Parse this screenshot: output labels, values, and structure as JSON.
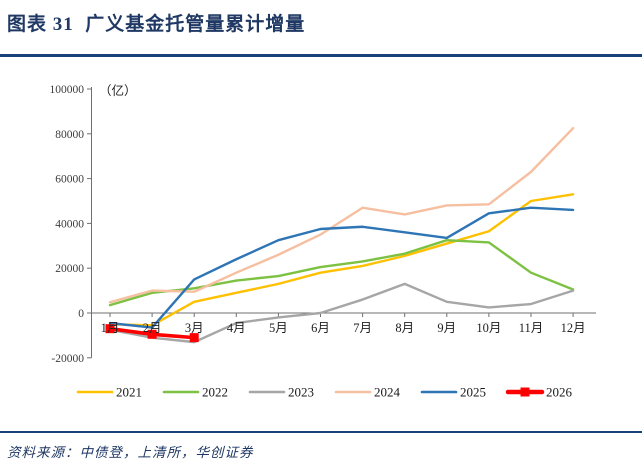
{
  "header": {
    "title": "图表 31  广义基金托管量累计增量"
  },
  "footer": {
    "source": "资料来源：中债登，上清所，华创证券"
  },
  "colors": {
    "accent_navy": "#1F3864",
    "rule_blue": "#17427A"
  },
  "chart_data": {
    "type": "line",
    "title": "广义基金托管量累计增量",
    "unit_label": "（亿）",
    "xlabel": "",
    "ylabel": "",
    "grid": false,
    "legend_position": "bottom",
    "ylim": [
      -20000,
      100000
    ],
    "ytick_step": 20000,
    "x_categories": [
      "1月",
      "2月",
      "3月",
      "4月",
      "5月",
      "6月",
      "7月",
      "8月",
      "9月",
      "10月",
      "11月",
      "12月"
    ],
    "series": [
      {
        "name": "2021",
        "color": "#FFC000",
        "values": [
          -5000,
          -5500,
          5000,
          9000,
          13000,
          18000,
          21000,
          25500,
          31000,
          36500,
          50000,
          53000
        ]
      },
      {
        "name": "2022",
        "color": "#7DC142",
        "values": [
          3500,
          9000,
          11000,
          14500,
          16500,
          20500,
          23000,
          26500,
          32500,
          31500,
          18000,
          10500
        ]
      },
      {
        "name": "2023",
        "color": "#A6A6A6",
        "values": [
          -7500,
          -11000,
          -13000,
          -4500,
          -2000,
          0,
          6000,
          13000,
          5000,
          2500,
          4000,
          10000
        ]
      },
      {
        "name": "2024",
        "color": "#F5BFA0",
        "values": [
          4800,
          10000,
          9500,
          18000,
          26000,
          35000,
          47000,
          44000,
          48000,
          48500,
          63000,
          82500
        ]
      },
      {
        "name": "2025",
        "color": "#2E75B6",
        "values": [
          -4500,
          -6500,
          15000,
          24000,
          32500,
          37500,
          38500,
          36000,
          33500,
          44500,
          47000,
          46000
        ]
      },
      {
        "name": "2026",
        "color": "#FF0000",
        "values": [
          -7000,
          -9500,
          -11000
        ],
        "marker": "square",
        "thick": true
      }
    ]
  }
}
